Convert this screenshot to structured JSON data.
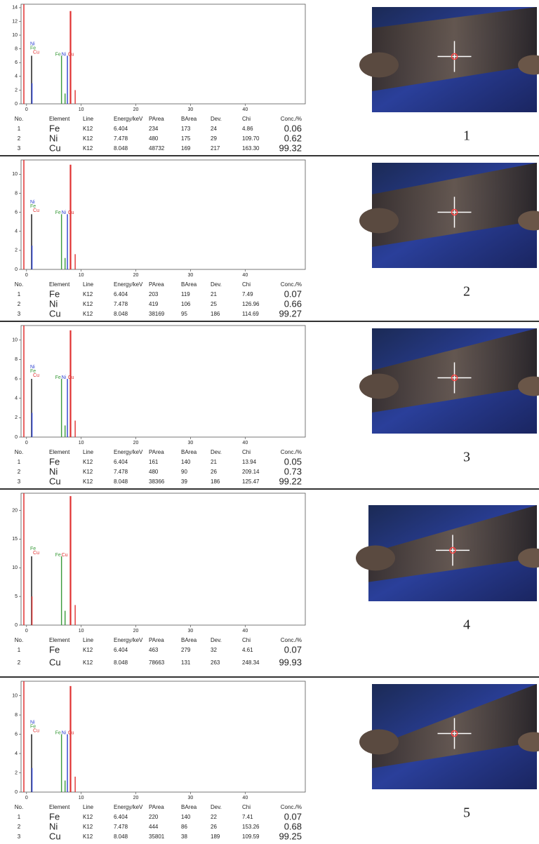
{
  "table_header": [
    "No.",
    "Element",
    "Line",
    "Energy/keV",
    "PArea",
    "BArea",
    "Dev.",
    "Chi",
    "Conc./%"
  ],
  "element_colors": {
    "Fe": "#3a9a3a",
    "Ni": "#2a3fd0",
    "Cu": "#e03030"
  },
  "panels": [
    {
      "label": "1",
      "spectrum": {
        "xlim": [
          -1,
          51
        ],
        "xticks": [
          0,
          10,
          20,
          30,
          40
        ],
        "ylim": [
          0,
          14.5
        ],
        "yticks": [
          0,
          2,
          4,
          6,
          8,
          10,
          12,
          14
        ],
        "peaks": [
          {
            "x": 0.93,
            "height": 7,
            "color": "#111111"
          },
          {
            "x": 1.0,
            "height": 3,
            "color": "#2a3fd0"
          },
          {
            "x": 6.4,
            "height": 7,
            "color": "#3a9a3a"
          },
          {
            "x": 7.05,
            "height": 1.5,
            "color": "#3a9a3a"
          },
          {
            "x": 7.48,
            "height": 7,
            "color": "#2a3fd0"
          },
          {
            "x": 8.05,
            "height": 13.5,
            "color": "#e03030"
          },
          {
            "x": 8.9,
            "height": 2,
            "color": "#e03030"
          }
        ],
        "l_labels": [
          "Ni",
          "Fe",
          "Cu"
        ],
        "k_labels": [
          "Fe",
          "Ni",
          "Cu"
        ]
      },
      "table": {
        "rows": [
          [
            "1",
            "Fe",
            "K12",
            "6.404",
            "234",
            "173",
            "24",
            "4.86",
            "0.06"
          ],
          [
            "2",
            "Ni",
            "K12",
            "7.478",
            "480",
            "175",
            "29",
            "109.70",
            "0.62"
          ],
          [
            "3",
            "Cu",
            "K12",
            "8.048",
            "48732",
            "169",
            "217",
            "163.30",
            "99.32"
          ]
        ]
      }
    },
    {
      "label": "2",
      "spectrum": {
        "xlim": [
          -1,
          51
        ],
        "xticks": [
          0,
          10,
          20,
          30,
          40
        ],
        "ylim": [
          0,
          11.5
        ],
        "yticks": [
          0,
          2,
          4,
          6,
          8,
          10
        ],
        "peaks": [
          {
            "x": 0.93,
            "height": 5.8,
            "color": "#111111"
          },
          {
            "x": 1.0,
            "height": 2.5,
            "color": "#2a3fd0"
          },
          {
            "x": 6.4,
            "height": 5.8,
            "color": "#3a9a3a"
          },
          {
            "x": 7.05,
            "height": 1.2,
            "color": "#3a9a3a"
          },
          {
            "x": 7.48,
            "height": 5.8,
            "color": "#2a3fd0"
          },
          {
            "x": 8.05,
            "height": 11,
            "color": "#e03030"
          },
          {
            "x": 8.9,
            "height": 1.6,
            "color": "#e03030"
          }
        ],
        "l_labels": [
          "Ni",
          "Fe",
          "Cu"
        ],
        "k_labels": [
          "Fe",
          "Ni",
          "Cu"
        ]
      },
      "table": {
        "rows": [
          [
            "1",
            "Fe",
            "K12",
            "6.404",
            "203",
            "119",
            "21",
            "7.49",
            "0.07"
          ],
          [
            "2",
            "Ni",
            "K12",
            "7.478",
            "419",
            "106",
            "25",
            "126.96",
            "0.66"
          ],
          [
            "3",
            "Cu",
            "K12",
            "8.048",
            "38169",
            "95",
            "186",
            "114.69",
            "99.27"
          ]
        ]
      }
    },
    {
      "label": "3",
      "spectrum": {
        "xlim": [
          -1,
          51
        ],
        "xticks": [
          0,
          10,
          20,
          30,
          40
        ],
        "ylim": [
          0,
          11.5
        ],
        "yticks": [
          0,
          2,
          4,
          6,
          8,
          10
        ],
        "peaks": [
          {
            "x": 0.93,
            "height": 6,
            "color": "#111111"
          },
          {
            "x": 1.0,
            "height": 2.5,
            "color": "#2a3fd0"
          },
          {
            "x": 6.4,
            "height": 6,
            "color": "#3a9a3a"
          },
          {
            "x": 7.05,
            "height": 1.2,
            "color": "#3a9a3a"
          },
          {
            "x": 7.48,
            "height": 6,
            "color": "#2a3fd0"
          },
          {
            "x": 8.05,
            "height": 11,
            "color": "#e03030"
          },
          {
            "x": 8.9,
            "height": 1.7,
            "color": "#e03030"
          }
        ],
        "l_labels": [
          "Ni",
          "Fe",
          "Cu"
        ],
        "k_labels": [
          "Fe",
          "Ni",
          "Cu"
        ]
      },
      "table": {
        "rows": [
          [
            "1",
            "Fe",
            "K12",
            "6.404",
            "161",
            "140",
            "21",
            "13.94",
            "0.05"
          ],
          [
            "2",
            "Ni",
            "K12",
            "7.478",
            "480",
            "90",
            "26",
            "209.14",
            "0.73"
          ],
          [
            "3",
            "Cu",
            "K12",
            "8.048",
            "38366",
            "39",
            "186",
            "125.47",
            "99.22"
          ]
        ]
      }
    },
    {
      "label": "4",
      "spectrum": {
        "xlim": [
          -1,
          51
        ],
        "xticks": [
          0,
          10,
          20,
          30,
          40
        ],
        "ylim": [
          0,
          23
        ],
        "yticks": [
          0,
          5,
          10,
          15,
          20
        ],
        "peaks": [
          {
            "x": 0.93,
            "height": 12,
            "color": "#111111"
          },
          {
            "x": 1.0,
            "height": 5,
            "color": "#e03030"
          },
          {
            "x": 6.4,
            "height": 12,
            "color": "#3a9a3a"
          },
          {
            "x": 7.05,
            "height": 2.5,
            "color": "#3a9a3a"
          },
          {
            "x": 8.05,
            "height": 22.5,
            "color": "#e03030"
          },
          {
            "x": 8.9,
            "height": 3.5,
            "color": "#e03030"
          }
        ],
        "l_labels": [
          "Fe",
          "Cu"
        ],
        "k_labels": [
          "Fe",
          "Cu"
        ]
      },
      "table": {
        "rows": [
          [
            "1",
            "Fe",
            "K12",
            "6.404",
            "463",
            "279",
            "32",
            "4.61",
            "0.07"
          ],
          [
            "2",
            "Cu",
            "K12",
            "8.048",
            "78663",
            "131",
            "263",
            "248.34",
            "99.93"
          ]
        ]
      }
    },
    {
      "label": "5",
      "spectrum": {
        "xlim": [
          -1,
          51
        ],
        "xticks": [
          0,
          10,
          20,
          30,
          40
        ],
        "ylim": [
          0,
          11.5
        ],
        "yticks": [
          0,
          2,
          4,
          6,
          8,
          10
        ],
        "peaks": [
          {
            "x": 0.93,
            "height": 6,
            "color": "#111111"
          },
          {
            "x": 1.0,
            "height": 2.5,
            "color": "#2a3fd0"
          },
          {
            "x": 6.4,
            "height": 6,
            "color": "#3a9a3a"
          },
          {
            "x": 7.05,
            "height": 1.2,
            "color": "#3a9a3a"
          },
          {
            "x": 7.48,
            "height": 6,
            "color": "#2a3fd0"
          },
          {
            "x": 8.05,
            "height": 11,
            "color": "#e03030"
          },
          {
            "x": 8.9,
            "height": 1.6,
            "color": "#e03030"
          }
        ],
        "l_labels": [
          "Ni",
          "Fe",
          "Cu"
        ],
        "k_labels": [
          "Fe",
          "Ni",
          "Cu"
        ]
      },
      "table": {
        "rows": [
          [
            "1",
            "Fe",
            "K12",
            "6.404",
            "220",
            "140",
            "22",
            "7.41",
            "0.07"
          ],
          [
            "2",
            "Ni",
            "K12",
            "7.478",
            "444",
            "86",
            "26",
            "153.26",
            "0.68"
          ],
          [
            "3",
            "Cu",
            "K12",
            "8.048",
            "35801",
            "38",
            "189",
            "109.59",
            "99.25"
          ]
        ]
      }
    }
  ]
}
